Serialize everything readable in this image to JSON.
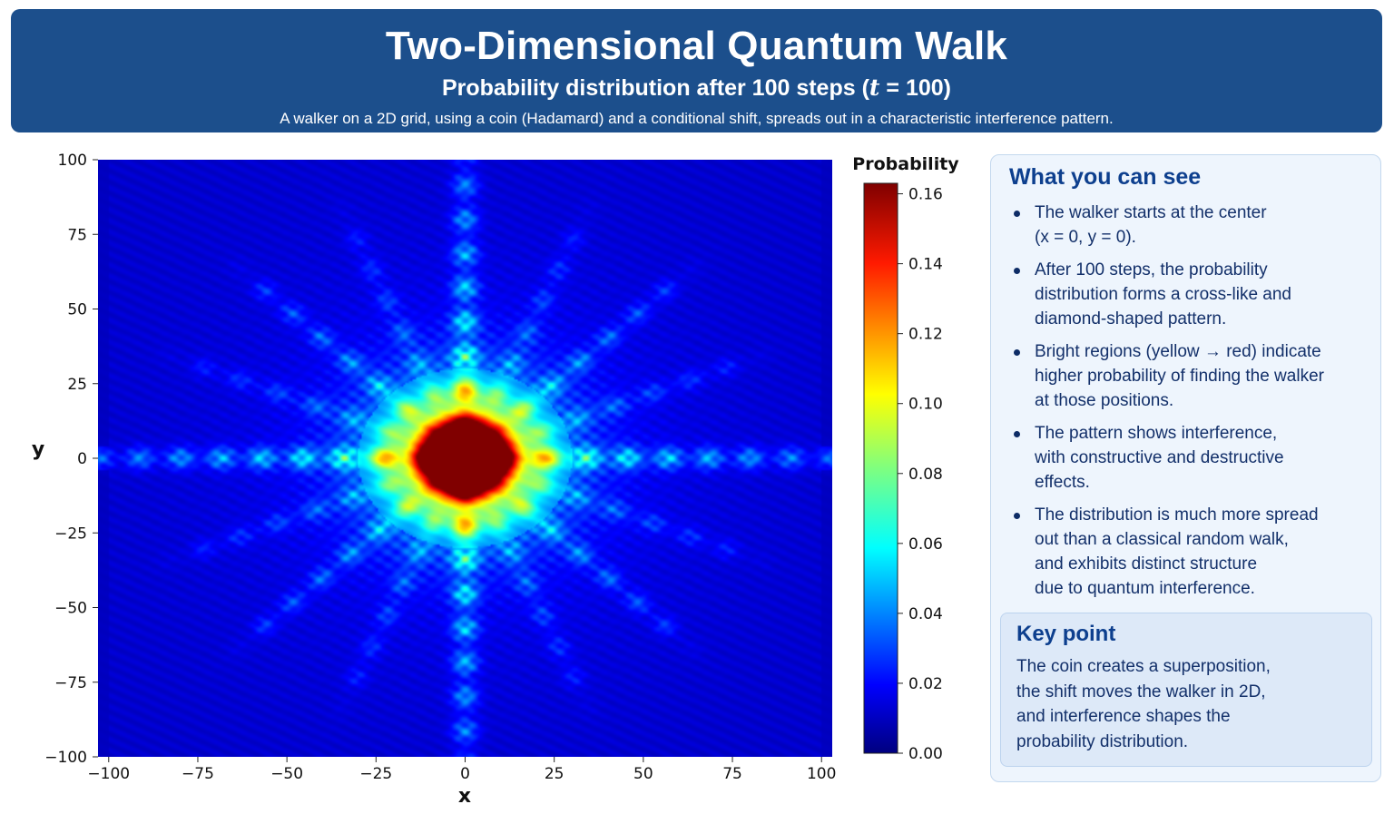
{
  "header": {
    "title": "Two-Dimensional Quantum Walk",
    "subtitle_prefix": "Probability distribution after 100 steps (",
    "subtitle_var": "t",
    "subtitle_suffix": " = 100)",
    "description": "A walker on a 2D grid, using a coin (Hadamard) and a conditional shift, spreads out in a characteristic interference pattern."
  },
  "chart_data": {
    "type": "heatmap",
    "title": "",
    "xlabel": "x",
    "ylabel": "y",
    "xlim": [
      -103,
      103
    ],
    "ylim": [
      -100,
      100
    ],
    "x_ticks": [
      -100,
      -75,
      -50,
      -25,
      0,
      25,
      50,
      75,
      100
    ],
    "y_ticks": [
      -100,
      -75,
      -50,
      -25,
      0,
      25,
      50,
      75,
      100
    ],
    "x_tick_labels": [
      "−100",
      "−75",
      "−50",
      "−25",
      "0",
      "25",
      "50",
      "75",
      "100"
    ],
    "y_tick_labels": [
      "−100",
      "−75",
      "−50",
      "−25",
      "0",
      "25",
      "50",
      "75",
      "100"
    ],
    "steps": 100,
    "colormap": "jet",
    "colorbar": {
      "label": "Probability",
      "range": [
        0,
        0.163
      ],
      "ticks": [
        0,
        0.02,
        0.04,
        0.06,
        0.08,
        0.1,
        0.12,
        0.14,
        0.16
      ],
      "tick_labels": [
        "0.00",
        "0.02",
        "0.04",
        "0.06",
        "0.08",
        "0.10",
        "0.12",
        "0.14",
        "0.16"
      ]
    },
    "peak_probability": 0.16,
    "background_color": "#00008f"
  },
  "sidebar": {
    "title": "What you can see",
    "bullets": [
      {
        "lines": [
          "The walker starts at the center",
          "(x = 0, y = 0)."
        ]
      },
      {
        "lines": [
          "After 100 steps, the probability",
          "distribution forms a cross-like and",
          "diamond-shaped pattern."
        ]
      },
      {
        "lines": [
          "Bright regions (yellow → red) indicate",
          "higher probability of finding the walker",
          "at those positions."
        ]
      },
      {
        "lines": [
          "The pattern shows interference,",
          "with constructive and destructive",
          "effects."
        ]
      },
      {
        "lines": [
          "The distribution is much more spread",
          "out than a classical random walk,",
          "and exhibits distinct structure",
          "due to quantum interference."
        ]
      }
    ],
    "key_point": {
      "title": "Key point",
      "lines": [
        "The coin creates a superposition,",
        "the shift moves the walker in 2D,",
        "and interference shapes the",
        "probability distribution."
      ]
    }
  }
}
